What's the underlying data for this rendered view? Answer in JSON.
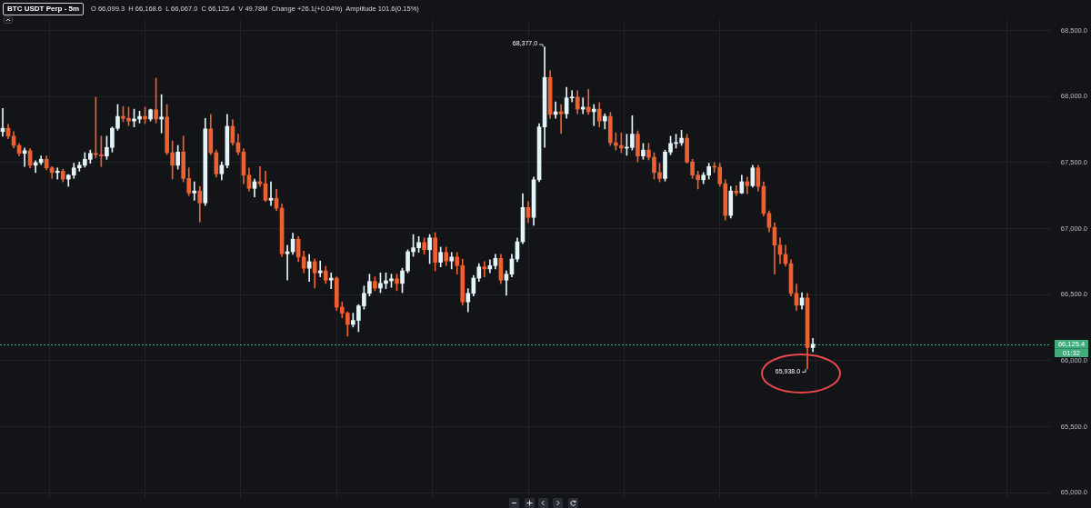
{
  "chart_data": {
    "type": "candlestick",
    "title": "BTC USDT Perp - 5m",
    "subtitle": "O 66,099.3  H 66,168.6  L 66,067.0  C 66,125.4  V 49.78M  Change +26.1(+0.04%)  Amplitude 101.6(0.15%)",
    "categories": [
      null,
      null,
      null,
      null,
      null,
      null,
      null,
      null,
      null,
      null,
      null,
      null,
      null,
      null,
      null,
      null,
      null,
      null,
      null,
      null,
      null,
      null,
      null,
      null,
      null,
      null,
      null,
      null,
      null,
      null,
      null,
      null,
      null,
      null,
      null,
      null,
      null,
      null,
      null,
      null,
      null,
      null,
      null,
      null,
      null,
      null,
      null,
      null,
      null,
      null,
      null,
      null,
      null,
      null,
      null,
      null,
      null,
      null,
      null,
      null,
      null,
      null,
      null,
      null,
      null,
      null,
      null,
      null,
      null,
      null,
      null,
      null,
      null,
      null,
      null,
      null,
      null,
      null,
      null,
      null,
      null,
      null,
      null,
      null,
      null,
      null,
      null,
      null,
      null,
      null,
      null,
      null,
      null,
      null,
      null,
      null,
      null,
      null,
      null,
      null,
      null,
      null,
      null,
      null,
      null,
      null,
      null,
      null,
      null,
      null,
      null,
      null,
      null,
      null,
      null,
      null,
      null,
      null,
      null,
      null,
      null,
      null,
      null,
      null,
      null,
      null,
      null,
      null,
      null,
      null,
      null,
      null,
      null,
      null,
      null,
      null,
      null,
      null,
      null,
      null,
      null,
      null,
      null,
      null,
      null,
      null,
      null,
      null,
      null,
      null,
      null,
      null,
      null,
      null,
      null,
      null,
      null,
      null,
      null,
      null,
      null,
      null,
      null,
      null,
      null,
      null,
      null,
      null,
      null,
      null,
      null,
      null,
      null,
      null,
      null,
      null,
      null,
      null,
      null,
      null,
      null,
      null,
      null,
      null,
      null,
      null,
      null,
      null,
      null,
      null,
      null,
      null
    ],
    "ohlc": [
      [
        67735,
        67910,
        67700,
        67760
      ],
      [
        67760,
        67790,
        67680,
        67700
      ],
      [
        67700,
        67735,
        67610,
        67630
      ],
      [
        67630,
        67645,
        67550,
        67570
      ],
      [
        67570,
        67610,
        67470,
        67590
      ],
      [
        67590,
        67605,
        67460,
        67480
      ],
      [
        67480,
        67515,
        67425,
        67500
      ],
      [
        67500,
        67550,
        67485,
        67525
      ],
      [
        67525,
        67550,
        67445,
        67460
      ],
      [
        67460,
        67470,
        67380,
        67425
      ],
      [
        67425,
        67460,
        67375,
        67435
      ],
      [
        67435,
        67450,
        67355,
        67375
      ],
      [
        67375,
        67410,
        67320,
        67405
      ],
      [
        67405,
        67495,
        67380,
        67460
      ],
      [
        67460,
        67505,
        67435,
        67480
      ],
      [
        67480,
        67575,
        67465,
        67525
      ],
      [
        67525,
        67595,
        67495,
        67570
      ],
      [
        67570,
        67995,
        67535,
        67560
      ],
      [
        67560,
        67700,
        67470,
        67550
      ],
      [
        67550,
        67700,
        67525,
        67615
      ],
      [
        67615,
        67770,
        67580,
        67760
      ],
      [
        67760,
        67940,
        67745,
        67850
      ],
      [
        67850,
        67925,
        67810,
        67835
      ],
      [
        67835,
        67920,
        67780,
        67815
      ],
      [
        67815,
        67905,
        67770,
        67830
      ],
      [
        67830,
        67890,
        67800,
        67850
      ],
      [
        67850,
        67920,
        67795,
        67830
      ],
      [
        67830,
        67905,
        67815,
        67900
      ],
      [
        67900,
        68140,
        67800,
        67830
      ],
      [
        67830,
        68015,
        67725,
        67845
      ],
      [
        67845,
        67940,
        67560,
        67575
      ],
      [
        67575,
        67665,
        67375,
        67480
      ],
      [
        67480,
        67630,
        67450,
        67580
      ],
      [
        67580,
        67700,
        67355,
        67380
      ],
      [
        67380,
        67460,
        67250,
        67270
      ],
      [
        67270,
        67355,
        67215,
        67285
      ],
      [
        67285,
        67320,
        67050,
        67195
      ],
      [
        67195,
        67835,
        67175,
        67755
      ],
      [
        67755,
        67865,
        67560,
        67575
      ],
      [
        67575,
        67595,
        67390,
        67415
      ],
      [
        67415,
        67505,
        67370,
        67480
      ],
      [
        67480,
        67865,
        67460,
        67775
      ],
      [
        67775,
        67825,
        67630,
        67650
      ],
      [
        67650,
        67715,
        67560,
        67580
      ],
      [
        67580,
        67605,
        67340,
        67405
      ],
      [
        67405,
        67460,
        67285,
        67305
      ],
      [
        67305,
        67375,
        67240,
        67355
      ],
      [
        67355,
        67470,
        67320,
        67340
      ],
      [
        67340,
        67435,
        67205,
        67215
      ],
      [
        67215,
        67355,
        67175,
        67230
      ],
      [
        67230,
        67300,
        67135,
        67155
      ],
      [
        67155,
        67185,
        66790,
        66810
      ],
      [
        66810,
        66875,
        66610,
        66825
      ],
      [
        66825,
        66965,
        66805,
        66920
      ],
      [
        66920,
        66940,
        66750,
        66785
      ],
      [
        66785,
        66830,
        66665,
        66700
      ],
      [
        66700,
        66805,
        66600,
        66750
      ],
      [
        66750,
        66770,
        66550,
        66665
      ],
      [
        66665,
        66755,
        66635,
        66680
      ],
      [
        66680,
        66715,
        66585,
        66610
      ],
      [
        66610,
        66665,
        66545,
        66625
      ],
      [
        66625,
        66635,
        66380,
        66405
      ],
      [
        66405,
        66445,
        66325,
        66360
      ],
      [
        66360,
        66370,
        66185,
        66275
      ],
      [
        66275,
        66360,
        66255,
        66305
      ],
      [
        66305,
        66425,
        66220,
        66415
      ],
      [
        66415,
        66565,
        66390,
        66510
      ],
      [
        66510,
        66655,
        66490,
        66600
      ],
      [
        66600,
        66635,
        66530,
        66550
      ],
      [
        66550,
        66665,
        66515,
        66585
      ],
      [
        66585,
        66665,
        66545,
        66605
      ],
      [
        66605,
        66655,
        66555,
        66620
      ],
      [
        66620,
        66655,
        66530,
        66585
      ],
      [
        66585,
        66700,
        66515,
        66680
      ],
      [
        66680,
        66840,
        66665,
        66825
      ],
      [
        66825,
        66955,
        66790,
        66855
      ],
      [
        66855,
        66940,
        66820,
        66895
      ],
      [
        66895,
        66930,
        66805,
        66840
      ],
      [
        66840,
        66955,
        66735,
        66930
      ],
      [
        66930,
        66970,
        66680,
        66745
      ],
      [
        66745,
        66860,
        66710,
        66820
      ],
      [
        66820,
        66860,
        66720,
        66755
      ],
      [
        66755,
        66820,
        66695,
        66785
      ],
      [
        66785,
        66820,
        66655,
        66720
      ],
      [
        66720,
        66770,
        66420,
        66445
      ],
      [
        66445,
        66545,
        66370,
        66510
      ],
      [
        66510,
        66645,
        66490,
        66625
      ],
      [
        66625,
        66735,
        66600,
        66710
      ],
      [
        66710,
        66750,
        66635,
        66695
      ],
      [
        66695,
        66765,
        66665,
        66720
      ],
      [
        66720,
        66805,
        66695,
        66775
      ],
      [
        66775,
        66805,
        66585,
        66610
      ],
      [
        66610,
        66680,
        66495,
        66655
      ],
      [
        66655,
        66805,
        66635,
        66770
      ],
      [
        66770,
        66930,
        66750,
        66900
      ],
      [
        66900,
        67265,
        66885,
        67160
      ],
      [
        67160,
        67205,
        67045,
        67085
      ],
      [
        67085,
        67390,
        67025,
        67370
      ],
      [
        67370,
        67795,
        67355,
        67770
      ],
      [
        67770,
        68377,
        67615,
        68145
      ],
      [
        68145,
        68195,
        67835,
        67865
      ],
      [
        67865,
        67960,
        67835,
        67885
      ],
      [
        67885,
        67940,
        67720,
        67870
      ],
      [
        67870,
        68070,
        67835,
        67990
      ],
      [
        67990,
        68045,
        67960,
        67995
      ],
      [
        67995,
        68045,
        67870,
        67905
      ],
      [
        67905,
        67990,
        67870,
        67920
      ],
      [
        67920,
        68055,
        67865,
        67885
      ],
      [
        67885,
        67940,
        67780,
        67905
      ],
      [
        67905,
        67955,
        67770,
        67815
      ],
      [
        67815,
        67870,
        67755,
        67850
      ],
      [
        67850,
        67880,
        67630,
        67650
      ],
      [
        67650,
        67725,
        67595,
        67630
      ],
      [
        67630,
        67725,
        67575,
        67610
      ],
      [
        67610,
        67715,
        67555,
        67615
      ],
      [
        67615,
        67855,
        67595,
        67715
      ],
      [
        67715,
        67740,
        67505,
        67550
      ],
      [
        67550,
        67645,
        67525,
        67595
      ],
      [
        67595,
        67645,
        67520,
        67540
      ],
      [
        67540,
        67575,
        67375,
        67425
      ],
      [
        67425,
        67495,
        67355,
        67380
      ],
      [
        67380,
        67595,
        67360,
        67580
      ],
      [
        67580,
        67700,
        67560,
        67645
      ],
      [
        67645,
        67715,
        67610,
        67650
      ],
      [
        67650,
        67745,
        67630,
        67685
      ],
      [
        67685,
        67715,
        67495,
        67505
      ],
      [
        67505,
        67525,
        67380,
        67405
      ],
      [
        67405,
        67435,
        67300,
        67370
      ],
      [
        67370,
        67425,
        67340,
        67405
      ],
      [
        67405,
        67495,
        67375,
        67470
      ],
      [
        67470,
        67500,
        67425,
        67465
      ],
      [
        67465,
        67495,
        67320,
        67340
      ],
      [
        67340,
        67370,
        67065,
        67100
      ],
      [
        67100,
        67320,
        67080,
        67285
      ],
      [
        67285,
        67325,
        67250,
        67270
      ],
      [
        67270,
        67405,
        67265,
        67355
      ],
      [
        67355,
        67390,
        67265,
        67325
      ],
      [
        67325,
        67480,
        67315,
        67460
      ],
      [
        67460,
        67480,
        67285,
        67320
      ],
      [
        67320,
        67355,
        67095,
        67115
      ],
      [
        67115,
        67135,
        66975,
        67010
      ],
      [
        67010,
        67045,
        66655,
        66875
      ],
      [
        66875,
        66930,
        66735,
        66805
      ],
      [
        66805,
        66875,
        66715,
        66735
      ],
      [
        66735,
        66765,
        66490,
        66510
      ],
      [
        66510,
        66580,
        66380,
        66420
      ],
      [
        66420,
        66515,
        66390,
        66475
      ],
      [
        66475,
        66510,
        65938,
        66099.3
      ],
      [
        66099.3,
        66168.6,
        66067.0,
        66125.4
      ],
      null,
      null,
      null,
      null,
      null,
      null,
      null,
      null,
      null,
      null,
      null,
      null,
      null,
      null,
      null,
      null,
      null,
      null,
      null,
      null,
      null,
      null,
      null,
      null,
      null,
      null,
      null,
      null,
      null,
      null,
      null,
      null,
      null,
      null,
      null,
      null,
      null,
      null,
      null,
      null,
      null,
      null,
      null
    ],
    "colors": [
      "#e4f5fa",
      "#ee6030",
      "#ee6030",
      "#ee6030",
      "#e4f5fa",
      "#ee6030",
      "#e4f5fa",
      "#e4f5fa",
      "#ee6030",
      "#ee6030",
      "#e4f5fa",
      "#ee6030",
      "#e4f5fa",
      "#e4f5fa",
      "#e4f5fa",
      "#e4f5fa",
      "#e4f5fa",
      "#ee6030",
      "#ee6030",
      "#e4f5fa",
      "#e4f5fa",
      "#e4f5fa",
      "#ee6030",
      "#ee6030",
      "#e4f5fa",
      "#e4f5fa",
      "#ee6030",
      "#e4f5fa",
      "#ee6030",
      "#e4f5fa",
      "#ee6030",
      "#ee6030",
      "#e4f5fa",
      "#ee6030",
      "#ee6030",
      "#e4f5fa",
      "#ee6030",
      "#e4f5fa",
      "#ee6030",
      "#ee6030",
      "#e4f5fa",
      "#e4f5fa",
      "#ee6030",
      "#ee6030",
      "#ee6030",
      "#ee6030",
      "#e4f5fa",
      "#ee6030",
      "#ee6030",
      "#e4f5fa",
      "#ee6030",
      "#ee6030",
      "#e4f5fa",
      "#e4f5fa",
      "#ee6030",
      "#ee6030",
      "#e4f5fa",
      "#ee6030",
      "#e4f5fa",
      "#ee6030",
      "#e4f5fa",
      "#ee6030",
      "#ee6030",
      "#ee6030",
      "#e4f5fa",
      "#e4f5fa",
      "#e4f5fa",
      "#e4f5fa",
      "#ee6030",
      "#e4f5fa",
      "#e4f5fa",
      "#e4f5fa",
      "#ee6030",
      "#e4f5fa",
      "#e4f5fa",
      "#e4f5fa",
      "#e4f5fa",
      "#ee6030",
      "#e4f5fa",
      "#ee6030",
      "#e4f5fa",
      "#ee6030",
      "#e4f5fa",
      "#ee6030",
      "#ee6030",
      "#e4f5fa",
      "#e4f5fa",
      "#e4f5fa",
      "#ee6030",
      "#e4f5fa",
      "#e4f5fa",
      "#ee6030",
      "#e4f5fa",
      "#e4f5fa",
      "#e4f5fa",
      "#e4f5fa",
      "#ee6030",
      "#e4f5fa",
      "#e4f5fa",
      "#e4f5fa",
      "#ee6030",
      "#e4f5fa",
      "#ee6030",
      "#e4f5fa",
      "#e4f5fa",
      "#ee6030",
      "#e4f5fa",
      "#ee6030",
      "#e4f5fa",
      "#ee6030",
      "#e4f5fa",
      "#ee6030",
      "#ee6030",
      "#ee6030",
      "#e4f5fa",
      "#e4f5fa",
      "#ee6030",
      "#e4f5fa",
      "#ee6030",
      "#ee6030",
      "#ee6030",
      "#e4f5fa",
      "#e4f5fa",
      "#e4f5fa",
      "#e4f5fa",
      "#ee6030",
      "#ee6030",
      "#ee6030",
      "#e4f5fa",
      "#e4f5fa",
      "#ee6030",
      "#ee6030",
      "#ee6030",
      "#e4f5fa",
      "#ee6030",
      "#e4f5fa",
      "#ee6030",
      "#e4f5fa",
      "#ee6030",
      "#ee6030",
      "#ee6030",
      "#ee6030",
      "#ee6030",
      "#ee6030",
      "#ee6030",
      "#ee6030",
      "#e4f5fa",
      "#ee6030",
      "#e4f5fa",
      null,
      null,
      null,
      null,
      null,
      null,
      null,
      null,
      null,
      null,
      null,
      null,
      null,
      null,
      null,
      null,
      null,
      null,
      null,
      null,
      null,
      null,
      null,
      null,
      null,
      null,
      null,
      null,
      null,
      null,
      null,
      null,
      null,
      null,
      null,
      null,
      null,
      null,
      null,
      null,
      null,
      null,
      null
    ],
    "ylim": [
      64960,
      68580
    ],
    "yticks": [
      {
        "value": 65000,
        "label": "65,000.0"
      },
      {
        "value": 65500,
        "label": "65,500.0"
      },
      {
        "value": 66000,
        "label": "66,000.0"
      },
      {
        "value": 66500,
        "label": "66,500.0"
      },
      {
        "value": 67000,
        "label": "67,000.0"
      },
      {
        "value": 67500,
        "label": "67,500.0"
      },
      {
        "value": 68000,
        "label": "68,000.0"
      },
      {
        "value": 68500,
        "label": "68,500.0"
      }
    ],
    "grid": true,
    "ref_lines": [
      {
        "axis": "y",
        "value": 66125.4,
        "label": "66,125.4",
        "color": "#42ad7c",
        "line_style": "dashed"
      }
    ],
    "annotations": [
      "68,377.0",
      "65,938.0",
      "01:32"
    ]
  }
}
